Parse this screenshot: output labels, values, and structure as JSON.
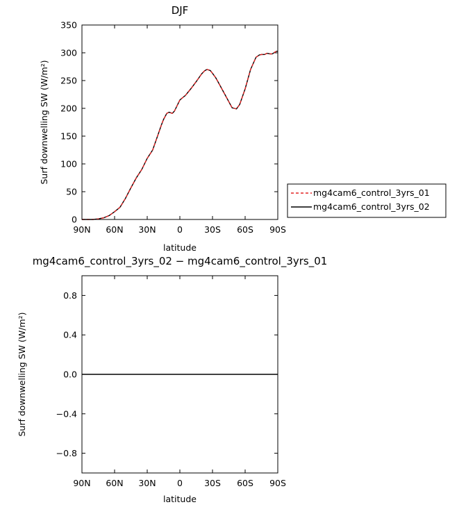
{
  "chart_data": [
    {
      "type": "line",
      "title": "DJF",
      "xlabel": "latitude",
      "ylabel": "Surf downwelling SW (W/m²)",
      "xlim": [
        90,
        -90
      ],
      "ylim": [
        0,
        350
      ],
      "x_ticks": [
        90,
        60,
        30,
        0,
        -30,
        -60,
        -90
      ],
      "x_tick_labels": [
        "90N",
        "60N",
        "30N",
        "0",
        "30S",
        "60S",
        "90S"
      ],
      "y_ticks": [
        0,
        50,
        100,
        150,
        200,
        250,
        300,
        350
      ],
      "y_tick_labels": [
        "0",
        "50",
        "100",
        "150",
        "200",
        "250",
        "300",
        "350"
      ],
      "grid": false,
      "legend_position": "right",
      "series": [
        {
          "name": "mg4cam6_control_3yrs_01",
          "color": "#e32222",
          "dash": "dashed",
          "x": [
            90,
            85,
            80,
            75,
            70,
            65,
            60,
            55,
            50,
            45,
            40,
            35,
            30,
            25,
            20,
            17,
            15,
            12,
            10,
            7,
            5,
            2,
            0,
            -3,
            -5,
            -10,
            -15,
            -20,
            -23,
            -25,
            -28,
            -30,
            -33,
            -35,
            -40,
            -45,
            -48,
            -50,
            -52,
            -55,
            -60,
            -65,
            -70,
            -73,
            -75,
            -78,
            -80,
            -83,
            -85,
            -88,
            -90
          ],
          "y": [
            0,
            0,
            0,
            1,
            3,
            7,
            14,
            22,
            38,
            57,
            75,
            90,
            110,
            125,
            153,
            170,
            180,
            191,
            193,
            191,
            195,
            207,
            215,
            220,
            223,
            235,
            248,
            262,
            268,
            270,
            268,
            263,
            255,
            248,
            230,
            212,
            201,
            200,
            199,
            207,
            235,
            270,
            292,
            296,
            297,
            297,
            299,
            298,
            298,
            302,
            303
          ]
        },
        {
          "name": "mg4cam6_control_3yrs_02",
          "color": "#000000",
          "dash": "solid",
          "x": [
            90,
            85,
            80,
            75,
            70,
            65,
            60,
            55,
            50,
            45,
            40,
            35,
            30,
            25,
            20,
            17,
            15,
            12,
            10,
            7,
            5,
            2,
            0,
            -3,
            -5,
            -10,
            -15,
            -20,
            -23,
            -25,
            -28,
            -30,
            -33,
            -35,
            -40,
            -45,
            -48,
            -50,
            -52,
            -55,
            -60,
            -65,
            -70,
            -73,
            -75,
            -78,
            -80,
            -83,
            -85,
            -88,
            -90
          ],
          "y": [
            0,
            0,
            0,
            1,
            3,
            7,
            14,
            22,
            38,
            57,
            75,
            90,
            110,
            125,
            153,
            170,
            180,
            191,
            193,
            191,
            195,
            207,
            215,
            220,
            223,
            235,
            248,
            262,
            268,
            270,
            268,
            263,
            255,
            248,
            230,
            212,
            201,
            200,
            199,
            207,
            235,
            270,
            292,
            296,
            297,
            297,
            299,
            298,
            298,
            302,
            303
          ]
        }
      ]
    },
    {
      "type": "line",
      "title": "mg4cam6_control_3yrs_02 − mg4cam6_control_3yrs_01",
      "xlabel": "latitude",
      "ylabel": "Surf downwelling SW (W/m²)",
      "xlim": [
        90,
        -90
      ],
      "ylim": [
        -1,
        1
      ],
      "x_ticks": [
        90,
        60,
        30,
        0,
        -30,
        -60,
        -90
      ],
      "x_tick_labels": [
        "90N",
        "60N",
        "30N",
        "0",
        "30S",
        "60S",
        "90S"
      ],
      "y_ticks": [
        -0.8,
        -0.4,
        0.0,
        0.4,
        0.8
      ],
      "y_tick_labels": [
        "−0.8",
        "−0.4",
        "0.0",
        "0.4",
        "0.8"
      ],
      "grid": false,
      "series": [
        {
          "color": "#000000",
          "dash": "solid",
          "x": [
            90,
            -90
          ],
          "y": [
            0,
            0
          ]
        }
      ]
    }
  ]
}
